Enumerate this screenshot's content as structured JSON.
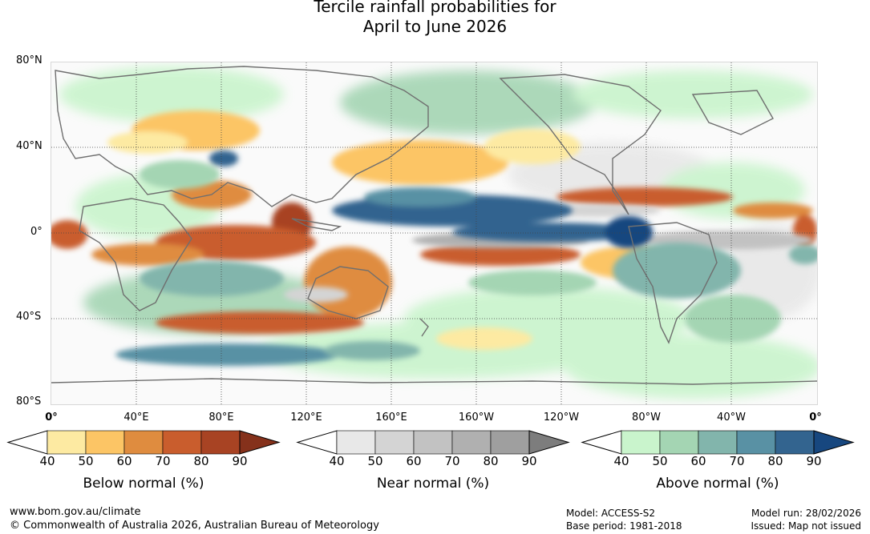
{
  "title": {
    "line1": "Tercile rainfall probabilities for",
    "line2": "April to June 2026"
  },
  "map": {
    "lat_labels": [
      "80°N",
      "40°N",
      "0°",
      "40°S",
      "80°S"
    ],
    "lon_labels": [
      "0°",
      "40°E",
      "80°E",
      "120°E",
      "160°E",
      "160°W",
      "120°W",
      "80°W",
      "40°W",
      "0°"
    ]
  },
  "legends": [
    {
      "title": "Below normal (%)",
      "ticks": [
        "40",
        "50",
        "60",
        "70",
        "80",
        "90"
      ],
      "colors": [
        "#ffffff",
        "#fdeaa2",
        "#fcc565",
        "#df8c3f",
        "#c95d2d",
        "#a84323",
        "#85311b"
      ]
    },
    {
      "title": "Near normal (%)",
      "ticks": [
        "40",
        "50",
        "60",
        "70",
        "80",
        "90"
      ],
      "colors": [
        "#ffffff",
        "#e8e8e8",
        "#d4d4d4",
        "#c2c2c2",
        "#b0b0b0",
        "#9f9f9f",
        "#7d7d7d"
      ]
    },
    {
      "title": "Above normal (%)",
      "ticks": [
        "40",
        "50",
        "60",
        "70",
        "80",
        "90"
      ],
      "colors": [
        "#ffffff",
        "#c9f4cc",
        "#a4d5b3",
        "#82b5ac",
        "#5991a4",
        "#33648f",
        "#17477f"
      ]
    }
  ],
  "footer": {
    "url": "www.bom.gov.au/climate",
    "copyright": "© Commonwealth of Australia 2026, Australian Bureau of Meteorology",
    "model": "Model: ACCESS-S2",
    "base_period": "Base period: 1981-2018",
    "model_run": "Model run: 28/02/2026",
    "issued": "Issued: Map not issued"
  }
}
